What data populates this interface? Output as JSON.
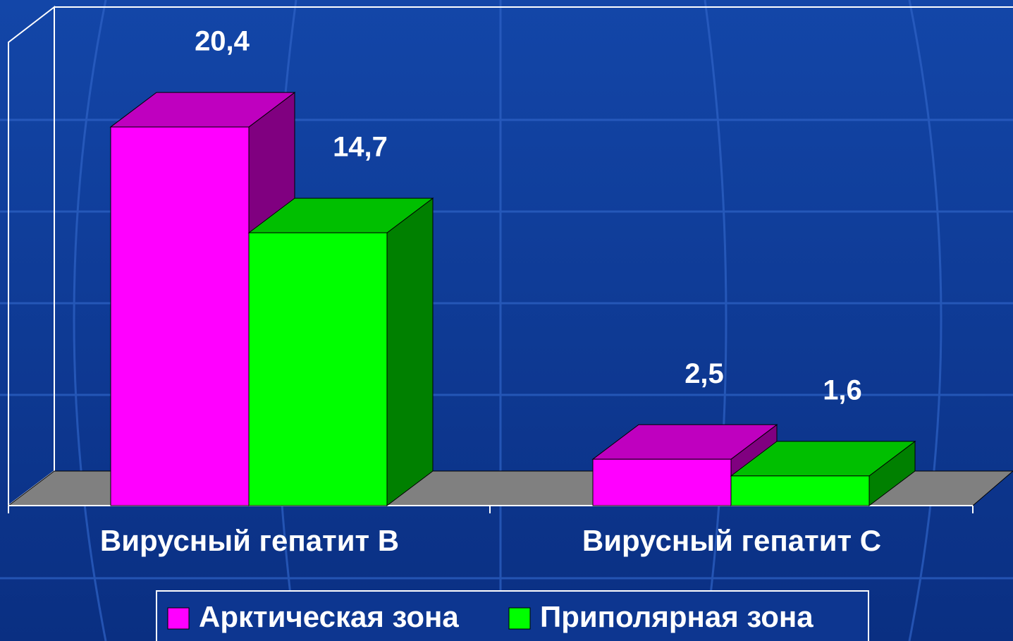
{
  "chart_data": {
    "type": "bar3d",
    "categories": [
      "Вирусный гепатит В",
      "Вирусный гепатит С"
    ],
    "series": [
      {
        "name": "Арктическая зона",
        "color": "#ff00ff",
        "values": [
          20.4,
          2.5
        ],
        "value_labels": [
          "20,4",
          "2,5"
        ]
      },
      {
        "name": "Приполярная зона",
        "color": "#00ff00",
        "values": [
          14.7,
          1.6
        ],
        "value_labels": [
          "14,7",
          "1,6"
        ]
      }
    ],
    "ylim": [
      0,
      25
    ]
  }
}
